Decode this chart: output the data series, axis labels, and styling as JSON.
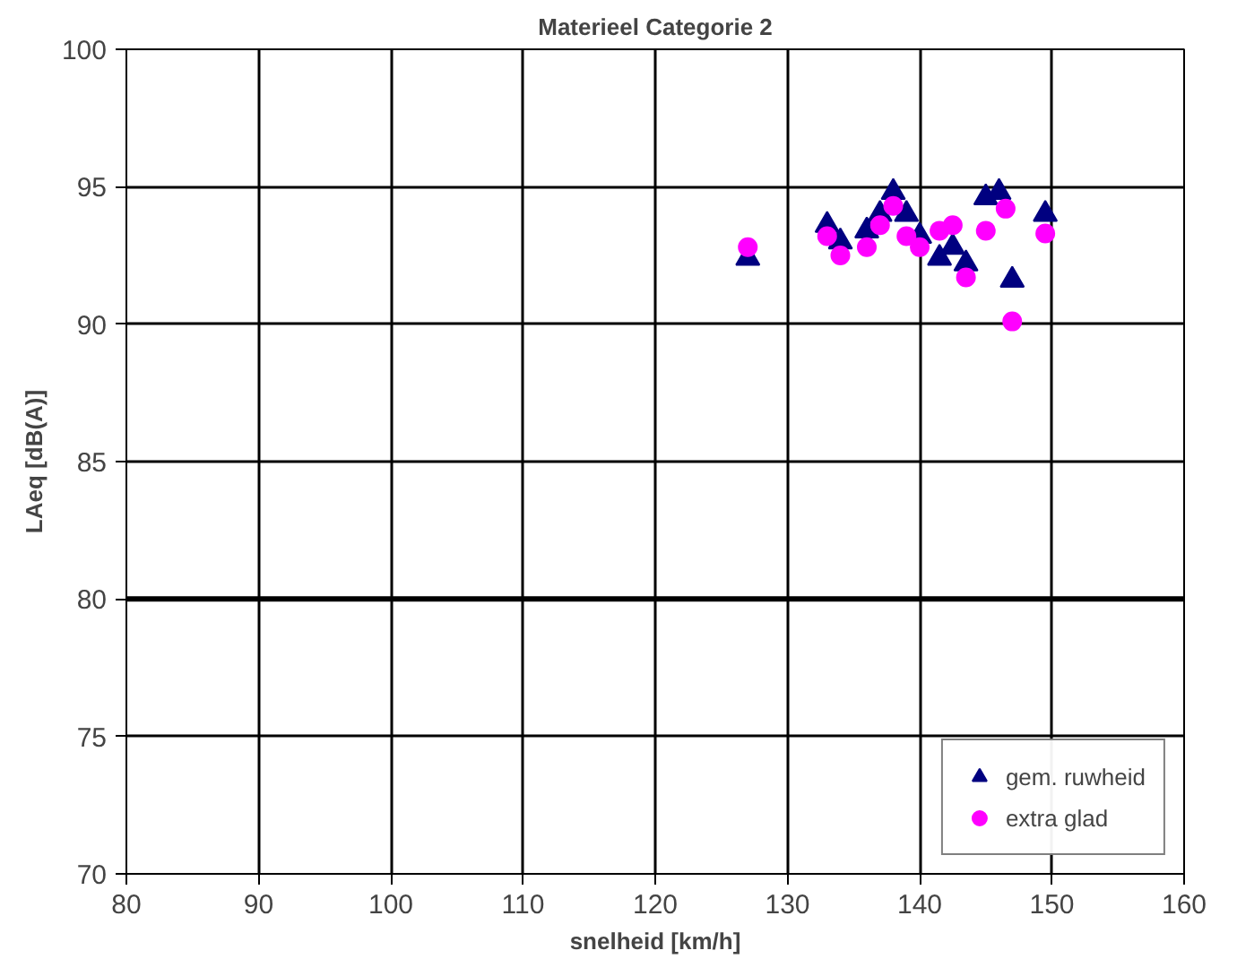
{
  "chart_data": {
    "type": "scatter",
    "title": "Materieel Categorie 2",
    "xlabel": "snelheid [km/h]",
    "ylabel": "LAeq [dB(A)]",
    "xlim": [
      80,
      160
    ],
    "xticks": [
      80,
      90,
      100,
      110,
      120,
      130,
      140,
      150,
      160
    ],
    "ylim": [
      70,
      100
    ],
    "yticks": [
      70,
      75,
      80,
      85,
      90,
      95,
      100
    ],
    "grid": true,
    "legend": "bottom right",
    "ref_lines": [
      {
        "axis": "y",
        "value": 80,
        "color": "#000000"
      }
    ],
    "series": [
      {
        "name": "gem. ruwheid",
        "color": "#000080",
        "marker": "triangle",
        "x": [
          127,
          133,
          134,
          136,
          137,
          138,
          139,
          140,
          141.5,
          142.5,
          143.5,
          145,
          146,
          147,
          149.5
        ],
        "values": [
          92.4,
          93.6,
          93.0,
          93.4,
          94.0,
          94.8,
          94.0,
          93.2,
          92.4,
          92.8,
          92.2,
          94.6,
          94.8,
          91.6,
          94.0
        ]
      },
      {
        "name": "extra glad",
        "color": "#ff00ff",
        "marker": "circle",
        "x": [
          127,
          133,
          134,
          136,
          137,
          138,
          139,
          140,
          141.5,
          142.5,
          143.5,
          145,
          146.5,
          147,
          149.5
        ],
        "values": [
          92.8,
          93.2,
          92.5,
          92.8,
          93.6,
          94.3,
          93.2,
          92.8,
          93.4,
          93.6,
          91.7,
          93.4,
          94.2,
          90.1,
          93.3
        ]
      }
    ]
  }
}
